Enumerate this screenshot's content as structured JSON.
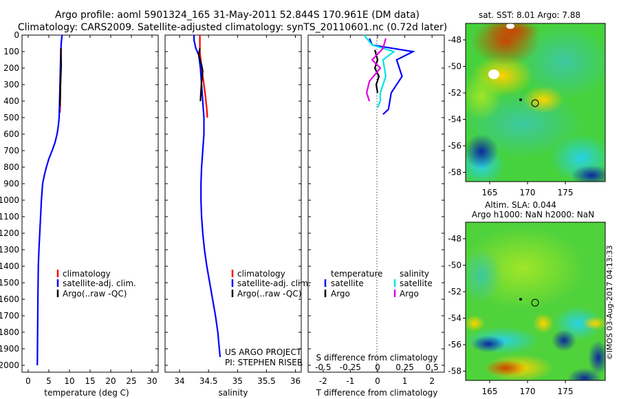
{
  "header": {
    "line1": "Argo profile: aoml 5901324_165 31-May-2011 52.844S 170.961E (DM data)",
    "line2": "Climatology: CARS2009. Satellite-adjusted climatology: synTS_20110601.nc (0.72d later)"
  },
  "depth_ticks": [
    0,
    100,
    200,
    300,
    400,
    500,
    600,
    700,
    800,
    900,
    1000,
    1100,
    1200,
    1300,
    1400,
    1500,
    1600,
    1700,
    1800,
    1900,
    2000
  ],
  "temp_panel": {
    "xlabel": "temperature (deg C)",
    "xticks": [
      0,
      5,
      10,
      15,
      20,
      25,
      30
    ],
    "xlim": [
      -1.5,
      31.5
    ],
    "legend": [
      "climatology",
      "satellite-adj. clim.",
      "Argo(..raw -QC)"
    ]
  },
  "sal_panel": {
    "xlabel": "salinity",
    "xticks": [
      34,
      34.5,
      35,
      35.5,
      36
    ],
    "xlim": [
      33.75,
      36.1
    ],
    "legend": [
      "climatology",
      "satellite-adj. clim.",
      "Argo(..raw -QC)"
    ],
    "credit1": "US ARGO PROJECT",
    "credit2": "PI: STEPHEN RISER"
  },
  "diff_panel": {
    "xlabel": "T difference from climatology",
    "top_label": "S difference from climatology",
    "xticks": [
      -2,
      -1,
      0,
      1,
      2
    ],
    "top_ticks": [
      "-0.5",
      "-0.25",
      "0",
      "0.25",
      "0.5"
    ],
    "xlim": [
      -2.55,
      2.45
    ],
    "legend_t_title": "temperature",
    "legend_s_title": "salinity",
    "legend_t": [
      "satellite",
      "Argo"
    ],
    "legend_s": [
      "satellite",
      "Argo"
    ]
  },
  "map1": {
    "title": "sat. SST: 8.01  Argo: 7.88",
    "yticks": [
      "-48",
      "-50",
      "-52",
      "-54",
      "-56",
      "-58"
    ],
    "xticks": [
      "165",
      "170",
      "175"
    ]
  },
  "map2": {
    "title1": "Altim. SLA: 0.044",
    "title2": "Argo h1000: NaN h2000: NaN",
    "yticks": [
      "-48",
      "-50",
      "-52",
      "-54",
      "-56",
      "-58"
    ],
    "xticks": [
      "165",
      "170",
      "175"
    ]
  },
  "watermark": "©IMOS 03-Aug-2017 04:13:33",
  "colors": {
    "climatology": "#ff0000",
    "satellite": "#0000ff",
    "argo": "#000000",
    "sal_satellite": "#00e5e5",
    "sal_argo": "#e000e0"
  },
  "chart_data": [
    {
      "type": "line",
      "panel": "temperature",
      "xlabel": "temperature (deg C)",
      "ylabel": "",
      "xlim": [
        -1.5,
        31.5
      ],
      "ylim": [
        2050,
        0
      ],
      "series": [
        {
          "name": "climatology",
          "x": [
            8.0,
            7.9,
            7.85,
            7.8,
            7.75,
            7.7
          ],
          "y": [
            80,
            150,
            250,
            350,
            420,
            470
          ]
        },
        {
          "name": "satellite-adj. clim.",
          "x": [
            8.2,
            8.0,
            7.9,
            7.8,
            7.7,
            7.6,
            7.5,
            7.3,
            7.0,
            6.5,
            5.8,
            5.0,
            4.4,
            3.9,
            3.5,
            3.2,
            3.0,
            2.8,
            2.6,
            2.45,
            2.35,
            2.28,
            2.22
          ],
          "y": [
            0,
            50,
            100,
            200,
            300,
            400,
            500,
            550,
            600,
            650,
            700,
            750,
            800,
            850,
            900,
            1000,
            1100,
            1200,
            1300,
            1400,
            1600,
            1800,
            2000
          ]
        },
        {
          "name": "Argo(..raw -QC)",
          "x": [
            7.9,
            7.95,
            8.0,
            7.9,
            7.8,
            7.75,
            7.7
          ],
          "y": [
            80,
            120,
            180,
            250,
            320,
            380,
            430
          ]
        }
      ]
    },
    {
      "type": "line",
      "panel": "salinity",
      "xlabel": "salinity",
      "ylabel": "",
      "xlim": [
        33.75,
        36.1
      ],
      "ylim": [
        2050,
        0
      ],
      "series": [
        {
          "name": "climatology",
          "x": [
            34.35,
            34.35,
            34.38,
            34.42,
            34.45,
            34.47,
            34.48
          ],
          "y": [
            0,
            100,
            200,
            300,
            380,
            450,
            500
          ]
        },
        {
          "name": "satellite-adj. clim.",
          "x": [
            34.25,
            34.25,
            34.28,
            34.33,
            34.36,
            34.38,
            34.4,
            34.42,
            34.42,
            34.4,
            34.38,
            34.37,
            34.37,
            34.38,
            34.4,
            34.43,
            34.47,
            34.52,
            34.57,
            34.62,
            34.66,
            34.7
          ],
          "y": [
            0,
            30,
            80,
            120,
            200,
            300,
            400,
            500,
            600,
            700,
            800,
            900,
            1000,
            1100,
            1200,
            1300,
            1400,
            1500,
            1600,
            1700,
            1800,
            1950
          ]
        },
        {
          "name": "Argo(..raw -QC)",
          "x": [
            34.35,
            34.33,
            34.38,
            34.4,
            34.38,
            34.37,
            34.36
          ],
          "y": [
            80,
            120,
            180,
            220,
            280,
            340,
            400
          ]
        }
      ]
    },
    {
      "type": "line",
      "panel": "difference",
      "xlabel": "T difference from climatology",
      "ylabel": "",
      "xlim": [
        -2.55,
        2.45
      ],
      "ylim": [
        2050,
        0
      ],
      "series": [
        {
          "name": "satellite",
          "x": [
            -0.3,
            -0.2,
            1.3,
            0.7,
            0.9,
            0.5,
            0.4,
            0.2
          ],
          "y": [
            20,
            60,
            100,
            150,
            250,
            350,
            450,
            480
          ]
        },
        {
          "name": "Argo",
          "x": [
            -0.1,
            0.0,
            -0.1,
            0.05,
            -0.05,
            0.0
          ],
          "y": [
            90,
            150,
            200,
            250,
            300,
            350
          ]
        },
        {
          "name": "satellite",
          "x": [
            -0.5,
            -0.2,
            0.6,
            0.2,
            0.3,
            0.1,
            0.1,
            0.0
          ],
          "y": [
            0,
            60,
            100,
            150,
            250,
            350,
            400,
            440
          ]
        },
        {
          "name": "Argo",
          "x": [
            0.3,
            0.2,
            -0.2,
            0.1,
            -0.3,
            -0.4,
            -0.3
          ],
          "y": [
            20,
            80,
            150,
            200,
            280,
            350,
            400
          ]
        }
      ]
    }
  ]
}
